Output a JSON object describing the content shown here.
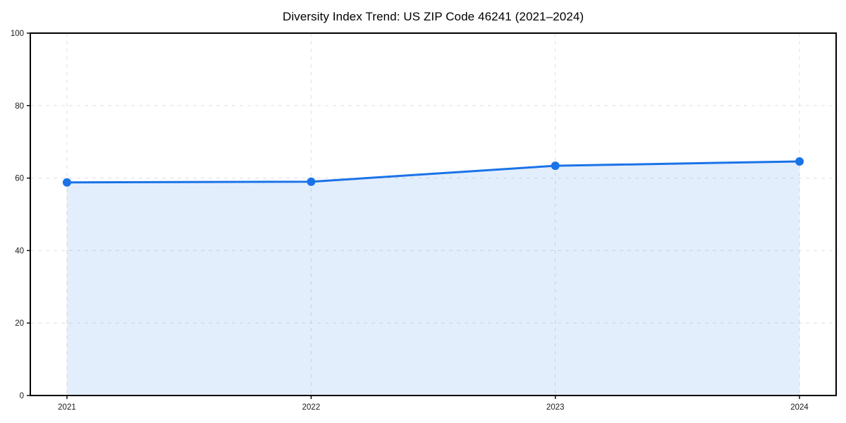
{
  "chart_data": {
    "type": "area",
    "title": "Diversity Index Trend: US ZIP Code 46241 (2021–2024)",
    "series": [
      {
        "name": "Diversity Index",
        "x": [
          2021,
          2022,
          2023,
          2024
        ],
        "values": [
          58.8,
          59.0,
          63.4,
          64.6
        ]
      }
    ],
    "categories": [
      "2021",
      "2022",
      "2023",
      "2024"
    ],
    "xlabel": "",
    "ylabel": "",
    "ylim": [
      0,
      100
    ],
    "yticks": [
      0,
      20,
      40,
      60,
      80,
      100
    ],
    "ytick_labels": [
      "0",
      "20",
      "40",
      "60",
      "80",
      "100"
    ],
    "xtick_labels": [
      "2021",
      "2022",
      "2023",
      "2024"
    ],
    "grid": true,
    "grid_style": "dashed",
    "legend": "none",
    "colors": {
      "line": "#1a73e8",
      "marker": "#1a73e8",
      "fill": "#1a73e8",
      "fill_opacity": 0.12,
      "grid": "#dfdfdf",
      "spine": "#000000",
      "tick_text": "#1a1a1a",
      "background": "#ffffff"
    }
  }
}
